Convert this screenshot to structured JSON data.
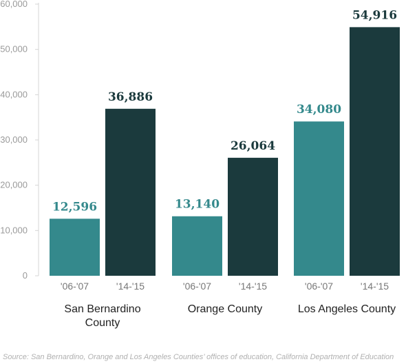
{
  "chart_data": {
    "type": "bar",
    "groups": [
      {
        "name": "San Bernardino County",
        "lines": [
          "San Bernardino",
          "County"
        ]
      },
      {
        "name": "Orange County",
        "lines": [
          "Orange County"
        ]
      },
      {
        "name": "Los Angeles County",
        "lines": [
          "Los Angeles County"
        ]
      }
    ],
    "series": [
      {
        "name": "'06-'07",
        "color": "#34898c",
        "values": [
          12596,
          13140,
          34080
        ]
      },
      {
        "name": "'14-'15",
        "color": "#1b3a3d",
        "values": [
          36886,
          26064,
          54916
        ]
      }
    ],
    "data_labels": [
      [
        "12,596",
        "13,140",
        "34,080"
      ],
      [
        "36,886",
        "26,064",
        "54,916"
      ]
    ],
    "period_labels": [
      "'06-'07",
      "'14-'15"
    ],
    "ylim": [
      0,
      60000
    ],
    "yticks": [
      0,
      10000,
      20000,
      30000,
      40000,
      50000,
      60000
    ],
    "ytick_labels": [
      "0",
      "10,000",
      "20,000",
      "30,000",
      "40,000",
      "50,000",
      "60,000"
    ],
    "title": "",
    "xlabel": "",
    "ylabel": "",
    "grid": false,
    "colors": {
      "axis": "#d4d4d4",
      "series_1": "#34898c",
      "series_2": "#1b3a3d"
    }
  },
  "source": "Source: San Bernardino, Orange and Los Angeles Counties’ offices of education, California Department of Education"
}
